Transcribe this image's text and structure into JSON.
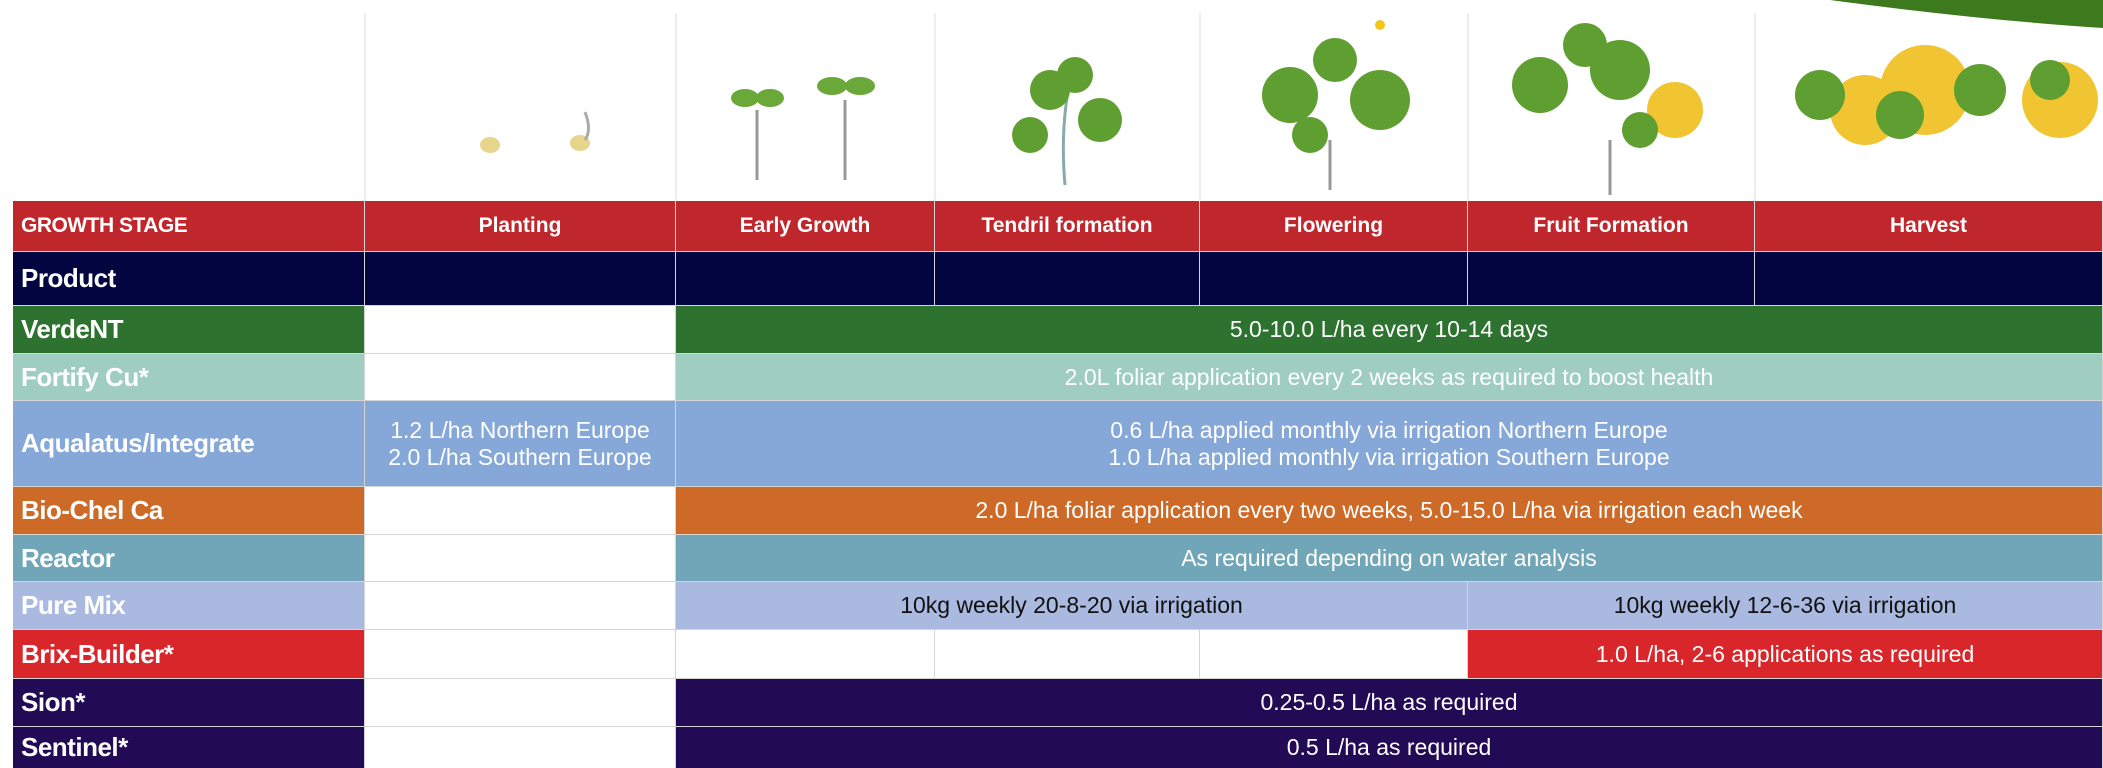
{
  "table": {
    "header": [
      "GROWTH STAGE",
      "Planting",
      "Early Growth",
      "Tendril formation",
      "Flowering",
      "Fruit Formation",
      "Harvest"
    ],
    "product_label": "Product",
    "rows": [
      {
        "product": "VerdeNT",
        "cells": [
          "5.0-10.0 L/ha every 10-14 days"
        ]
      },
      {
        "product": "Fortify Cu*",
        "cells": [
          "2.0L foliar application every 2 weeks as required to boost health"
        ]
      },
      {
        "product": "Aqualatus/Integrate",
        "cells": [
          [
            "1.2 L/ha Northern Europe",
            "2.0 L/ha Southern Europe"
          ],
          [
            "0.6 L/ha applied monthly via irrigation Northern Europe",
            "1.0 L/ha applied monthly via irrigation Southern Europe"
          ]
        ]
      },
      {
        "product": "Bio-Chel Ca",
        "cells": [
          "2.0 L/ha foliar application every two weeks, 5.0-15.0 L/ha via irrigation each week"
        ]
      },
      {
        "product": "Reactor",
        "cells": [
          "As required depending on water analysis"
        ]
      },
      {
        "product": "Pure Mix",
        "cells": [
          "10kg weekly 20-8-20 via irrigation",
          "10kg weekly 12-6-36 via irrigation"
        ]
      },
      {
        "product": "Brix-Builder*",
        "cells": [
          "1.0 L/ha, 2-6 applications as required"
        ]
      },
      {
        "product": "Sion*",
        "cells": [
          "0.25-0.5 L/ha as required"
        ]
      },
      {
        "product": "Sentinel*",
        "cells": [
          "0.5 L/ha as required"
        ]
      }
    ]
  }
}
